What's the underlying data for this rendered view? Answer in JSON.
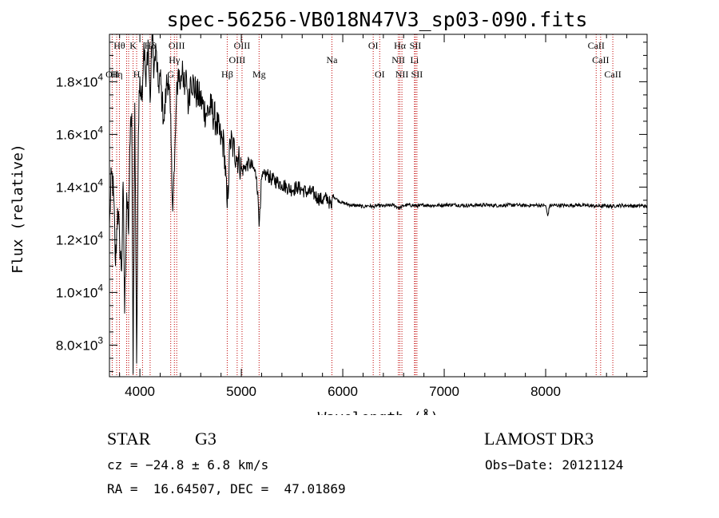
{
  "chart_data": {
    "type": "line",
    "title": "spec-56256-VB018N47V3_sp03-090.fits",
    "xlabel": "Wavelength (Å)",
    "ylabel": "Flux (relative)",
    "xlim": [
      3700,
      9000
    ],
    "ylim": [
      6800,
      19800
    ],
    "x_ticks": [
      4000,
      5000,
      6000,
      7000,
      8000
    ],
    "x_tick_labels": [
      "4000",
      "5000",
      "6000",
      "7000",
      "8000"
    ],
    "y_ticks": [
      8000,
      10000,
      12000,
      14000,
      16000,
      18000
    ],
    "y_tick_labels": [
      {
        "mantissa": "8.0",
        "exponent": "3"
      },
      {
        "mantissa": "1.0",
        "exponent": "4"
      },
      {
        "mantissa": "1.2",
        "exponent": "4"
      },
      {
        "mantissa": "1.4",
        "exponent": "4"
      },
      {
        "mantissa": "1.6",
        "exponent": "4"
      },
      {
        "mantissa": "1.8",
        "exponent": "4"
      }
    ],
    "series": [
      {
        "name": "spectrum",
        "color": "#000000",
        "x": [
          3700,
          3720,
          3740,
          3760,
          3780,
          3800,
          3820,
          3835,
          3850,
          3870,
          3889,
          3900,
          3920,
          3933,
          3950,
          3968,
          3985,
          4000,
          4020,
          4040,
          4060,
          4080,
          4101,
          4120,
          4140,
          4160,
          4180,
          4200,
          4220,
          4240,
          4260,
          4280,
          4300,
          4320,
          4340,
          4360,
          4380,
          4400,
          4420,
          4440,
          4460,
          4480,
          4500,
          4550,
          4600,
          4650,
          4700,
          4750,
          4800,
          4830,
          4861,
          4890,
          4920,
          4950,
          4980,
          5007,
          5040,
          5080,
          5120,
          5150,
          5167,
          5175,
          5183,
          5200,
          5250,
          5300,
          5350,
          5400,
          5450,
          5500,
          5550,
          5600,
          5650,
          5700,
          5750,
          5800,
          5850,
          5890,
          5900,
          5950,
          6000,
          6050,
          6100,
          6150,
          6200,
          6250,
          6300,
          6350,
          6400,
          6450,
          6500,
          6563,
          6600,
          6650,
          6700,
          6750,
          6800,
          6900,
          7000,
          7100,
          7200,
          7300,
          7400,
          7500,
          7600,
          7700,
          7800,
          7900,
          8000,
          8020,
          8040,
          8100,
          8200,
          8300,
          8400,
          8498,
          8542,
          8600,
          8662,
          8700,
          8800,
          8900,
          8950,
          9000
        ],
        "y": [
          12500,
          14500,
          13800,
          11000,
          13200,
          12000,
          10800,
          14200,
          9200,
          13800,
          12200,
          15500,
          16800,
          6900,
          17200,
          7300,
          16000,
          18200,
          17500,
          19500,
          17800,
          19600,
          17200,
          19800,
          18500,
          19200,
          17800,
          18200,
          17200,
          16500,
          17800,
          18200,
          16800,
          13500,
          14600,
          17200,
          18500,
          17800,
          18800,
          17500,
          18200,
          17000,
          18200,
          17600,
          17300,
          16800,
          17000,
          16500,
          15800,
          15600,
          13200,
          15800,
          15500,
          15200,
          15000,
          14600,
          14800,
          14900,
          14700,
          14400,
          13400,
          12500,
          13200,
          14300,
          14500,
          14300,
          14200,
          14100,
          14000,
          13900,
          14000,
          13900,
          13800,
          13800,
          13600,
          13500,
          13600,
          13200,
          13700,
          13500,
          13400,
          13350,
          13300,
          13300,
          13250,
          13300,
          13250,
          13300,
          13280,
          13300,
          13320,
          13200,
          13300,
          13320,
          13300,
          13280,
          13320,
          13300,
          13320,
          13330,
          13300,
          13310,
          13320,
          13300,
          13310,
          13320,
          13300,
          13310,
          13300,
          12900,
          13300,
          13310,
          13300,
          13320,
          13300,
          13280,
          13280,
          13290,
          13270,
          13300,
          13300,
          13280,
          13300,
          13250
        ]
      }
    ],
    "spectral_lines": [
      {
        "wavelength": 3727,
        "label": "OII",
        "row": 3
      },
      {
        "wavelength": 3771,
        "label": "Hη",
        "row": 3
      },
      {
        "wavelength": 3798,
        "label": "Hθ",
        "row": 1
      },
      {
        "wavelength": 3869,
        "label": "",
        "row": 0
      },
      {
        "wavelength": 3889,
        "label": "",
        "row": 0
      },
      {
        "wavelength": 3933,
        "label": "K",
        "row": 1
      },
      {
        "wavelength": 3968,
        "label": "H",
        "row": 3
      },
      {
        "wavelength": 4026,
        "label": "",
        "row": 0
      },
      {
        "wavelength": 4101,
        "label": "Hδ",
        "row": 1
      },
      {
        "wavelength": 4304,
        "label": "G",
        "row": 3
      },
      {
        "wavelength": 4340,
        "label": "Hγ",
        "row": 2
      },
      {
        "wavelength": 4363,
        "label": "OIII",
        "row": 1
      },
      {
        "wavelength": 4861,
        "label": "Hβ",
        "row": 3
      },
      {
        "wavelength": 4959,
        "label": "OIII",
        "row": 2
      },
      {
        "wavelength": 5007,
        "label": "OIII",
        "row": 1
      },
      {
        "wavelength": 5175,
        "label": "Mg",
        "row": 3
      },
      {
        "wavelength": 5893,
        "label": "Na",
        "row": 2
      },
      {
        "wavelength": 6300,
        "label": "OI",
        "row": 1
      },
      {
        "wavelength": 6364,
        "label": "OI",
        "row": 3
      },
      {
        "wavelength": 6548,
        "label": "NII",
        "row": 2
      },
      {
        "wavelength": 6563,
        "label": "Hα",
        "row": 1
      },
      {
        "wavelength": 6583,
        "label": "NII",
        "row": 3
      },
      {
        "wavelength": 6707,
        "label": "Li",
        "row": 2
      },
      {
        "wavelength": 6716,
        "label": "SII",
        "row": 1
      },
      {
        "wavelength": 6731,
        "label": "SII",
        "row": 3
      },
      {
        "wavelength": 8498,
        "label": "CaII",
        "row": 1
      },
      {
        "wavelength": 8542,
        "label": "CaII",
        "row": 2
      },
      {
        "wavelength": 8662,
        "label": "CaII",
        "row": 3
      }
    ],
    "line_color": "#c00000",
    "grid": false
  },
  "info": {
    "object_class": "STAR",
    "subclass": "G3",
    "survey": "LAMOST DR3",
    "cz": "cz = −24.8 ± 6.8 km/s",
    "obs_date": "Obs−Date: 20121124",
    "coords": "RA =  16.64507, DEC =  47.01869"
  },
  "misc": {
    "times_symbol": "×10"
  }
}
